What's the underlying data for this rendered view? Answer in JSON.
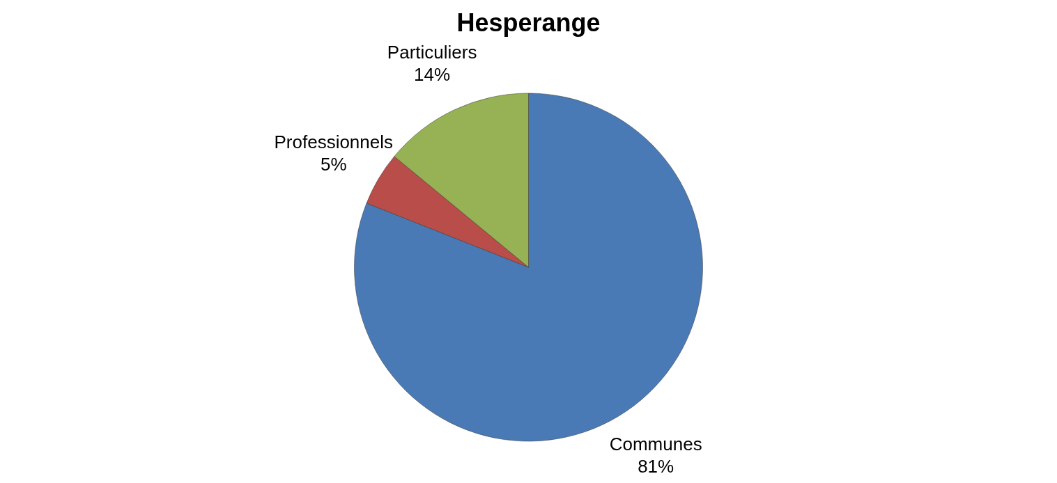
{
  "chart_data": {
    "type": "pie",
    "title": "Hesperange",
    "categories": [
      "Communes",
      "Professionnels",
      "Particuliers"
    ],
    "values": [
      81,
      5,
      14
    ],
    "colors": [
      "#4a7ab5",
      "#b94d4a",
      "#96b254"
    ],
    "value_labels": [
      "81%",
      "5%",
      "14%"
    ],
    "legend": false
  }
}
